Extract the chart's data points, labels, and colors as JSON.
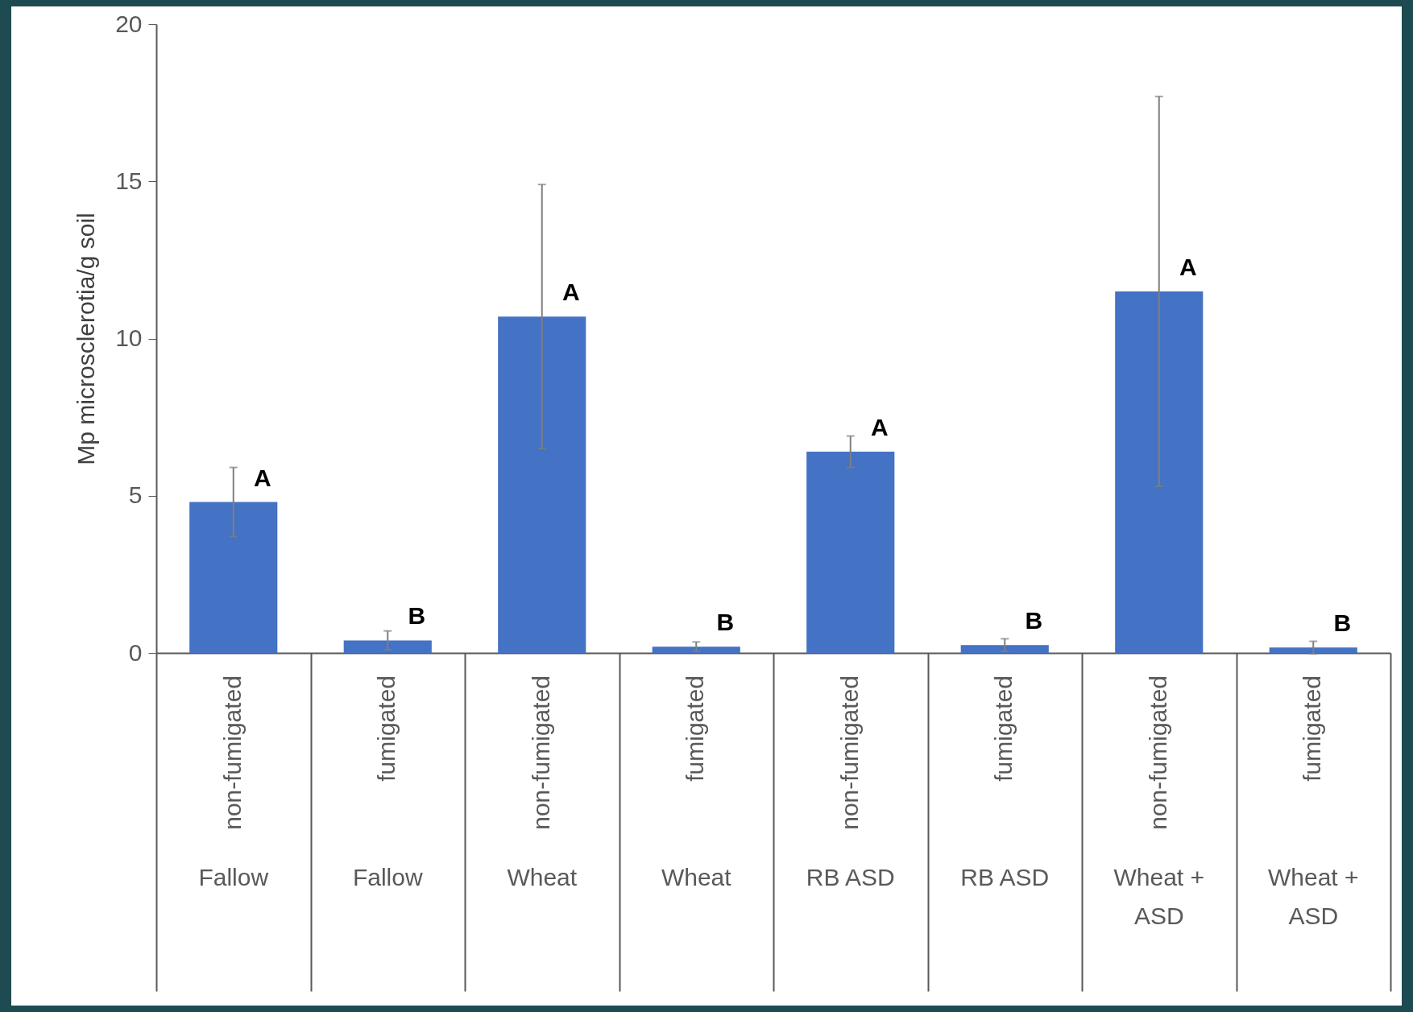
{
  "chart_data": {
    "type": "bar",
    "ylabel": "Mp microsclerotia/g soil",
    "categories": [
      "non-fumigated",
      "fumigated",
      "non-fumigated",
      "fumigated",
      "non-fumigated",
      "fumigated",
      "non-fumigated",
      "fumigated"
    ],
    "values": [
      4.8,
      0.4,
      10.7,
      0.2,
      6.4,
      0.25,
      11.5,
      0.17
    ],
    "errors": [
      1.1,
      0.3,
      4.2,
      0.15,
      0.5,
      0.2,
      6.2,
      0.2
    ],
    "value_labels": [
      "A",
      "B",
      "A",
      "B",
      "A",
      "B",
      "A",
      "B"
    ],
    "color": "#4472c4",
    "ylim": [
      0,
      20
    ],
    "yticks": [
      0,
      5,
      10,
      15,
      20
    ],
    "grid": false,
    "annotations": [
      "Fallow",
      "Fallow",
      "Wheat",
      "Wheat",
      "RB ASD",
      "RB ASD",
      "Wheat + ASD",
      "Wheat + ASD"
    ]
  }
}
